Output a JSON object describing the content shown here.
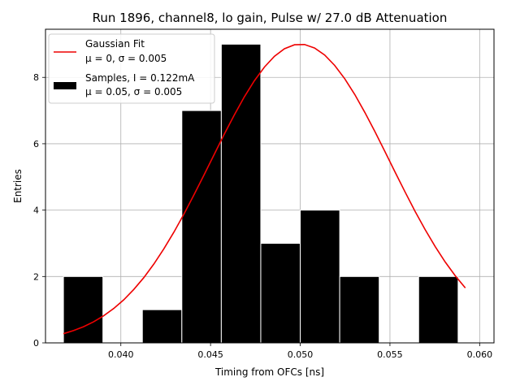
{
  "chart_data": {
    "type": "bar",
    "title": "Run 1896, channel8, lo gain, Pulse w/ 27.0 dB Attenuation",
    "xlabel": "Timing from OFCs [ns]",
    "ylabel": "Entries",
    "xlim": [
      0.0358,
      0.0608
    ],
    "ylim": [
      0,
      9.45
    ],
    "grid": true,
    "legend_placement": "top-left",
    "x_ticks": [
      {
        "value": 0.04,
        "label": "0.040"
      },
      {
        "value": 0.045,
        "label": "0.045"
      },
      {
        "value": 0.05,
        "label": "0.050"
      },
      {
        "value": 0.055,
        "label": "0.055"
      },
      {
        "value": 0.06,
        "label": "0.060"
      }
    ],
    "y_ticks": [
      {
        "value": 0,
        "label": "0"
      },
      {
        "value": 2,
        "label": "2"
      },
      {
        "value": 4,
        "label": "4"
      },
      {
        "value": 6,
        "label": "6"
      },
      {
        "value": 8,
        "label": "8"
      }
    ],
    "histogram": {
      "name": "Samples, I = 0.122mA",
      "stats": "μ = 0.05, σ = 0.005",
      "color": "#000000",
      "bins": [
        {
          "x0": 0.0368,
          "x1": 0.039,
          "count": 2
        },
        {
          "x0": 0.039,
          "x1": 0.0412,
          "count": 0
        },
        {
          "x0": 0.0412,
          "x1": 0.0434,
          "count": 1
        },
        {
          "x0": 0.0434,
          "x1": 0.0456,
          "count": 7
        },
        {
          "x0": 0.0456,
          "x1": 0.0478,
          "count": 9
        },
        {
          "x0": 0.0478,
          "x1": 0.05,
          "count": 3
        },
        {
          "x0": 0.05,
          "x1": 0.0522,
          "count": 4
        },
        {
          "x0": 0.0522,
          "x1": 0.0544,
          "count": 2
        },
        {
          "x0": 0.0544,
          "x1": 0.0566,
          "count": 0
        },
        {
          "x0": 0.0566,
          "x1": 0.0588,
          "count": 2
        }
      ]
    },
    "fit": {
      "name": "Gaussian Fit",
      "stats": "μ = 0, σ = 0.005",
      "color": "#ee0000",
      "amplitude": 9.0,
      "mean": 0.05,
      "sigma": 0.005,
      "x_range": [
        0.0368,
        0.0592
      ]
    }
  }
}
